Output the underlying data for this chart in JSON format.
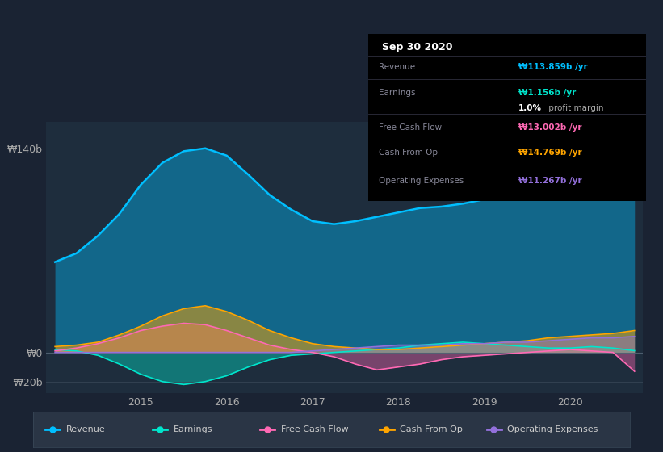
{
  "bg_color": "#1a2333",
  "plot_bg_color": "#1e2d3d",
  "colors": {
    "revenue": "#00bfff",
    "earnings": "#00e5cc",
    "free_cash_flow": "#ff69b4",
    "cash_from_op": "#ffa500",
    "operating_expenses": "#9370db"
  },
  "legend_bg": "#2a3545",
  "info_box_bg": "#000000",
  "xtick_labels": [
    "2015",
    "2016",
    "2017",
    "2018",
    "2019",
    "2020"
  ],
  "ytick_labels": [
    "-₩20b",
    "₩0",
    "₩140b"
  ],
  "ytick_vals": [
    -20,
    0,
    140
  ]
}
